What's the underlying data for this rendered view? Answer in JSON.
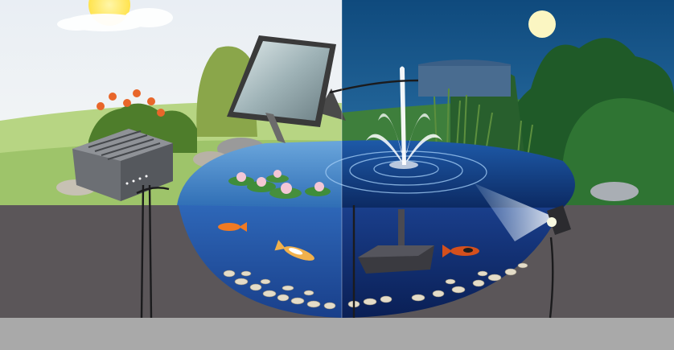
{
  "scene": {
    "left_panel": "day",
    "right_panel": "night",
    "items": [
      "sun-icon",
      "cloud-icon",
      "solar-panel-icon",
      "filter-box-icon",
      "fountain-pump-icon",
      "fountain-spray-icon",
      "spotlight-icon",
      "moon-icon",
      "koi-fish-icon",
      "water-lily-icon",
      "pebble-bed-icon",
      "cable-icon"
    ]
  },
  "colors": {
    "day_sky": "#eef2f6",
    "night_sky": "#1e5f8f",
    "day_grass": "#a6c970",
    "night_grass": "#3d7a3a",
    "soil": "#5b5659",
    "pond_day": "#4f8fcf",
    "pond_night": "#123f86",
    "floor_band": "#a9a9a9"
  }
}
